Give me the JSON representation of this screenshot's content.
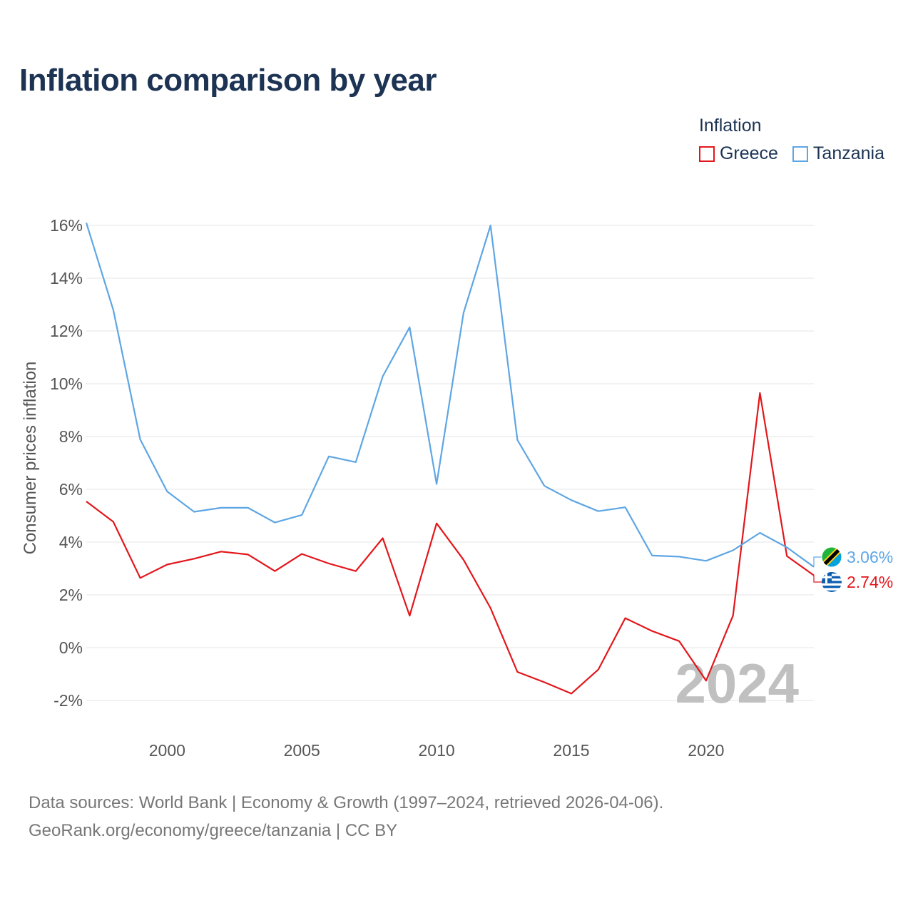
{
  "title": "Inflation comparison by year",
  "legend": {
    "title": "Inflation",
    "items": [
      {
        "label": "Greece",
        "color": "#e3161b"
      },
      {
        "label": "Tanzania",
        "color": "#5ea6e4"
      }
    ]
  },
  "chart_data": {
    "type": "line",
    "title": "Inflation comparison by year",
    "xlabel": "",
    "ylabel": "Consumer prices inflation",
    "xlim": [
      1997,
      2024
    ],
    "ylim": [
      -3,
      16
    ],
    "x_ticks": [
      2000,
      2005,
      2010,
      2015,
      2020
    ],
    "y_ticks": [
      -2,
      0,
      2,
      4,
      6,
      8,
      10,
      12,
      14,
      16
    ],
    "y_tick_labels": [
      "-2%",
      "0%",
      "2%",
      "4%",
      "6%",
      "8%",
      "10%",
      "12%",
      "14%",
      "16%"
    ],
    "grid": "horizontal",
    "legend_position": "top-right",
    "x": [
      1997,
      1998,
      1999,
      2000,
      2001,
      2002,
      2003,
      2004,
      2005,
      2006,
      2007,
      2008,
      2009,
      2010,
      2011,
      2012,
      2013,
      2014,
      2015,
      2016,
      2017,
      2018,
      2019,
      2020,
      2021,
      2022,
      2023,
      2024
    ],
    "series": [
      {
        "name": "Greece",
        "color": "#e3161b",
        "values": [
          5.54,
          4.77,
          2.64,
          3.15,
          3.37,
          3.64,
          3.53,
          2.9,
          3.55,
          3.19,
          2.9,
          4.15,
          1.21,
          4.71,
          3.33,
          1.5,
          -0.92,
          -1.31,
          -1.74,
          -0.83,
          1.12,
          0.63,
          0.25,
          -1.25,
          1.22,
          9.65,
          3.47,
          2.74
        ],
        "end_label": "2.74%"
      },
      {
        "name": "Tanzania",
        "color": "#5ea6e4",
        "values": [
          16.1,
          12.8,
          7.89,
          5.92,
          5.15,
          5.3,
          5.3,
          4.74,
          5.03,
          7.25,
          7.03,
          10.28,
          12.14,
          6.2,
          12.69,
          16.0,
          7.87,
          6.13,
          5.59,
          5.17,
          5.32,
          3.49,
          3.45,
          3.29,
          3.69,
          4.35,
          3.8,
          3.06
        ],
        "end_label": "3.06%"
      }
    ],
    "annotation_year": "2024"
  },
  "footer": {
    "line1": "Data sources: World Bank | Economy & Growth (1997–2024, retrieved 2026-04-06).",
    "line2": "GeoRank.org/economy/greece/tanzania | CC BY"
  }
}
